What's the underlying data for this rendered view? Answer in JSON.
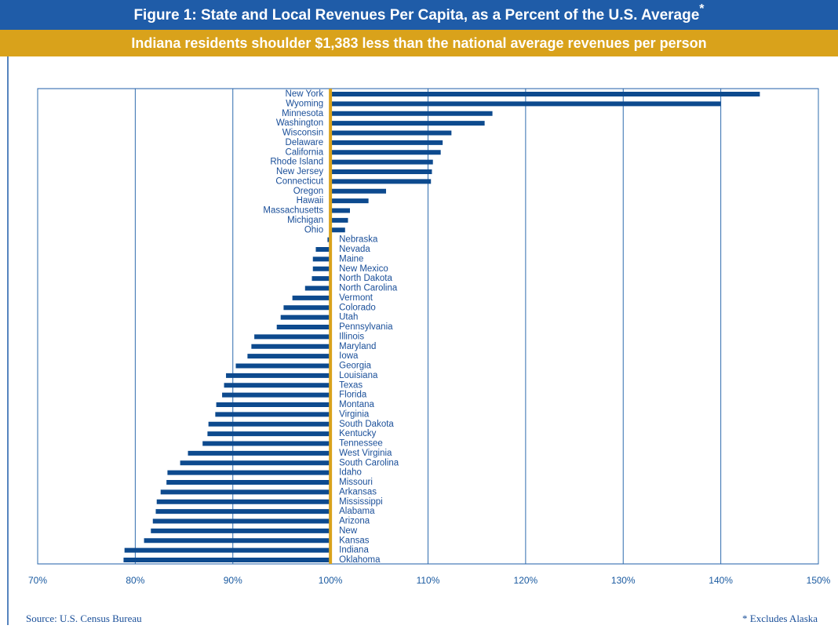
{
  "chart_data": {
    "type": "bar",
    "orientation": "horizontal",
    "title": "Figure 1: State and Local Revenues Per Capita, as a Percent of the U.S. Average",
    "title_marker": "*",
    "subtitle": "Indiana residents shoulder $1,383 less than the national average revenues per person",
    "source": "Source: U.S. Census Bureau",
    "footnote": "* Excludes Alaska",
    "baseline": 100,
    "color": "#0d4a8e",
    "baseline_color": "#d9a21b",
    "grid": true,
    "categories": [
      "New York",
      "Wyoming",
      "Minnesota",
      "Washington",
      "Wisconsin",
      "Delaware",
      "California",
      "Rhode Island",
      "New Jersey",
      "Connecticut",
      "Oregon",
      "Hawaii",
      "Massachusetts",
      "Michigan",
      "Ohio",
      "Nebraska",
      "Nevada",
      "Maine",
      "New Mexico",
      "North Dakota",
      "North Carolina",
      "Vermont",
      "Colorado",
      "Utah",
      "Pennsylvania",
      "Illinois",
      "Maryland",
      "Iowa",
      "Georgia",
      "Louisiana",
      "Texas",
      "Florida",
      "Montana",
      "Virginia",
      "South Dakota",
      "Kentucky",
      "Tennessee",
      "West Virginia",
      "South Carolina",
      "Idaho",
      "Missouri",
      "Arkansas",
      "Mississippi",
      "Alabama",
      "Arizona",
      "New",
      "Kansas",
      "Indiana",
      "Oklahoma"
    ],
    "values": [
      144.0,
      140.0,
      116.6,
      115.8,
      112.4,
      111.5,
      111.3,
      110.5,
      110.4,
      110.3,
      105.7,
      103.9,
      102.0,
      101.8,
      101.5,
      99.7,
      98.5,
      98.2,
      98.2,
      98.1,
      97.4,
      96.1,
      95.2,
      94.9,
      94.5,
      92.2,
      91.9,
      91.5,
      90.3,
      89.3,
      89.1,
      88.9,
      88.3,
      88.2,
      87.5,
      87.4,
      86.9,
      85.4,
      84.6,
      83.3,
      83.2,
      82.6,
      82.2,
      82.1,
      81.8,
      81.6,
      80.9,
      78.9,
      78.8
    ],
    "xlim": [
      70,
      150
    ],
    "xticks": [
      {
        "value": 70,
        "label": "70%"
      },
      {
        "value": 80,
        "label": "80%"
      },
      {
        "value": 90,
        "label": "90%"
      },
      {
        "value": 100,
        "label": "100%"
      },
      {
        "value": 110,
        "label": "110%"
      },
      {
        "value": 120,
        "label": "120%"
      },
      {
        "value": 130,
        "label": "130%"
      },
      {
        "value": 140,
        "label": "140%"
      },
      {
        "value": 150,
        "label": "150%"
      }
    ]
  }
}
